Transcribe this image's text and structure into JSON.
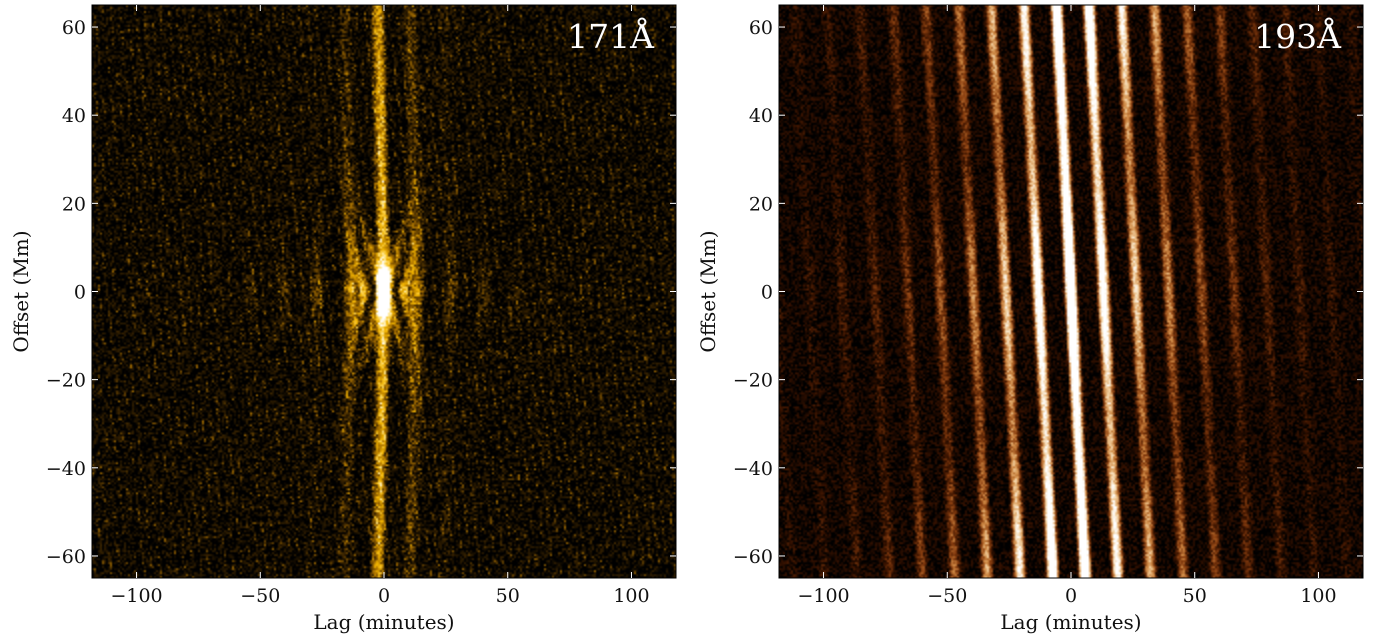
{
  "chart_data": [
    {
      "type": "heatmap",
      "panel_label": "171Å",
      "xlabel": "Lag (minutes)",
      "ylabel": "Offset (Mm)",
      "xlim": [
        -118,
        118
      ],
      "ylim": [
        -65,
        65
      ],
      "xticks": [
        -100,
        -50,
        0,
        50,
        100
      ],
      "xtick_labels": [
        "−100",
        "−50",
        "0",
        "50",
        "100"
      ],
      "yticks": [
        -60,
        -40,
        -20,
        0,
        20,
        40,
        60
      ],
      "ytick_labels": [
        "−60",
        "−40",
        "−20",
        "0",
        "20",
        "40",
        "60"
      ],
      "colormap": [
        "#000000",
        "#3a2400",
        "#a06a00",
        "#f2b400",
        "#ffe27a",
        "#ffffff"
      ],
      "pattern": "x-shaped ridges at zero lag and offset, spreading outward along offset and fading with lag"
    },
    {
      "type": "heatmap",
      "panel_label": "193Å",
      "xlabel": "Lag (minutes)",
      "ylabel": "Offset (Mm)",
      "xlim": [
        -118,
        118
      ],
      "ylim": [
        -65,
        65
      ],
      "xticks": [
        -100,
        -50,
        0,
        50,
        100
      ],
      "xtick_labels": [
        "−100",
        "−50",
        "0",
        "50",
        "100"
      ],
      "yticks": [
        -60,
        -40,
        -20,
        0,
        20,
        40,
        60
      ],
      "ytick_labels": [
        "−60",
        "−40",
        "−20",
        "0",
        "20",
        "40",
        "60"
      ],
      "colormap": [
        "#000000",
        "#3a1300",
        "#8a3f10",
        "#d08a45",
        "#f2d0a0",
        "#ffffff"
      ],
      "pattern": "periodic vertical ridges every ~13 minutes, strongest near zero lag, tilted across offset"
    }
  ]
}
